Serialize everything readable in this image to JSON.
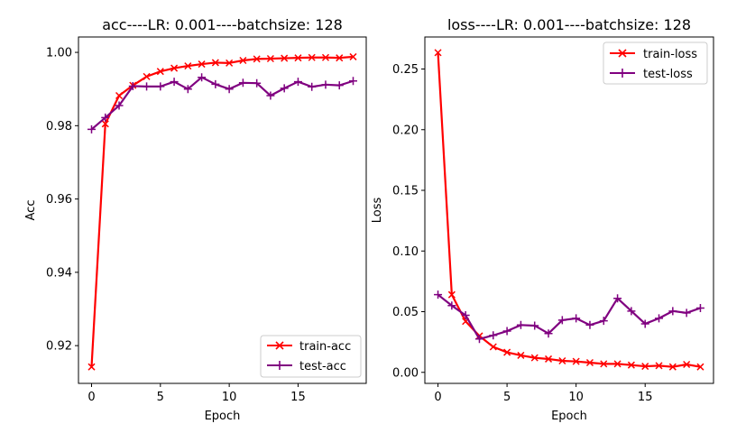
{
  "chart_data": [
    {
      "type": "line",
      "title": "acc----LR: 0.001----batchsize: 128",
      "xlabel": "Epoch",
      "ylabel": "Acc",
      "xlim": [
        -0.95,
        19.95
      ],
      "ylim": [
        0.9097,
        1.0042
      ],
      "xticks": [
        0,
        5,
        10,
        15
      ],
      "yticks": [
        0.92,
        0.94,
        0.96,
        0.98,
        1.0
      ],
      "ytick_labels": [
        "0.92",
        "0.94",
        "0.96",
        "0.98",
        "1.00"
      ],
      "legend": "lower-right",
      "grid": false,
      "x": [
        0,
        1,
        2,
        3,
        4,
        5,
        6,
        7,
        8,
        9,
        10,
        11,
        12,
        13,
        14,
        15,
        16,
        17,
        18,
        19
      ],
      "series": [
        {
          "name": "train-acc",
          "color": "#ff0000",
          "marker": "x",
          "values": [
            0.9142,
            0.9805,
            0.9882,
            0.991,
            0.9934,
            0.9948,
            0.9957,
            0.9963,
            0.9968,
            0.9972,
            0.9971,
            0.9978,
            0.9982,
            0.9983,
            0.9984,
            0.9985,
            0.9986,
            0.9986,
            0.9985,
            0.9988
          ]
        },
        {
          "name": "test-acc",
          "color": "#800080",
          "marker": "+",
          "values": [
            0.979,
            0.9822,
            0.9855,
            0.9908,
            0.9907,
            0.9907,
            0.992,
            0.99,
            0.9932,
            0.9913,
            0.99,
            0.9917,
            0.9916,
            0.9882,
            0.9902,
            0.992,
            0.9906,
            0.9912,
            0.991,
            0.9922
          ]
        }
      ]
    },
    {
      "type": "line",
      "title": "loss----LR: 0.001----batchsize: 128",
      "xlabel": "Epoch",
      "ylabel": "Loss",
      "xlim": [
        -0.95,
        19.95
      ],
      "ylim": [
        -0.0091,
        0.2764
      ],
      "xticks": [
        0,
        5,
        10,
        15
      ],
      "yticks": [
        0.0,
        0.05,
        0.1,
        0.15,
        0.2,
        0.25
      ],
      "ytick_labels": [
        "0.00",
        "0.05",
        "0.10",
        "0.15",
        "0.20",
        "0.25"
      ],
      "legend": "upper-right",
      "grid": false,
      "x": [
        0,
        1,
        2,
        3,
        4,
        5,
        6,
        7,
        8,
        9,
        10,
        11,
        12,
        13,
        14,
        15,
        16,
        17,
        18,
        19
      ],
      "series": [
        {
          "name": "train-loss",
          "color": "#ff0000",
          "marker": "x",
          "values": [
            0.2635,
            0.064,
            0.042,
            0.03,
            0.021,
            0.0165,
            0.014,
            0.012,
            0.011,
            0.0095,
            0.009,
            0.008,
            0.007,
            0.007,
            0.006,
            0.005,
            0.0055,
            0.0045,
            0.0065,
            0.0045
          ]
        },
        {
          "name": "test-loss",
          "color": "#800080",
          "marker": "+",
          "values": [
            0.064,
            0.055,
            0.047,
            0.0275,
            0.0305,
            0.034,
            0.039,
            0.0385,
            0.032,
            0.043,
            0.0445,
            0.039,
            0.0425,
            0.061,
            0.0505,
            0.04,
            0.0445,
            0.0505,
            0.049,
            0.053
          ]
        }
      ]
    }
  ]
}
